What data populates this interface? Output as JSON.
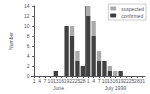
{
  "chart_data": {
    "type": "bar",
    "stacked": true,
    "ylabel": "Number",
    "categories": [
      "1",
      "4",
      "7",
      "10",
      "13",
      "16",
      "19",
      "22",
      "25",
      "28",
      "1",
      "4",
      "7",
      "10",
      "13",
      "16",
      "19",
      "22",
      "25",
      "28",
      "31"
    ],
    "series": [
      {
        "name": "confirmed",
        "color": "#404040",
        "values": [
          0,
          0,
          0,
          0,
          1,
          0,
          10,
          8,
          3,
          2,
          12,
          8,
          3,
          3,
          1,
          0,
          1,
          0,
          0,
          0,
          0
        ]
      },
      {
        "name": "suspected",
        "color": "#aaaaaa",
        "values": [
          0,
          0,
          0,
          0,
          0,
          0,
          0,
          2,
          2,
          0,
          2,
          3,
          2,
          0,
          1,
          1,
          0,
          0,
          0,
          0,
          0
        ]
      }
    ],
    "groups": [
      {
        "label": "June",
        "count": 10
      },
      {
        "label": "July 1999",
        "count": 11
      }
    ],
    "ylim": [
      0,
      14
    ],
    "yticks": [
      0,
      2,
      4,
      6,
      8,
      10,
      12,
      14
    ],
    "grid": false,
    "legend": "upper right"
  }
}
